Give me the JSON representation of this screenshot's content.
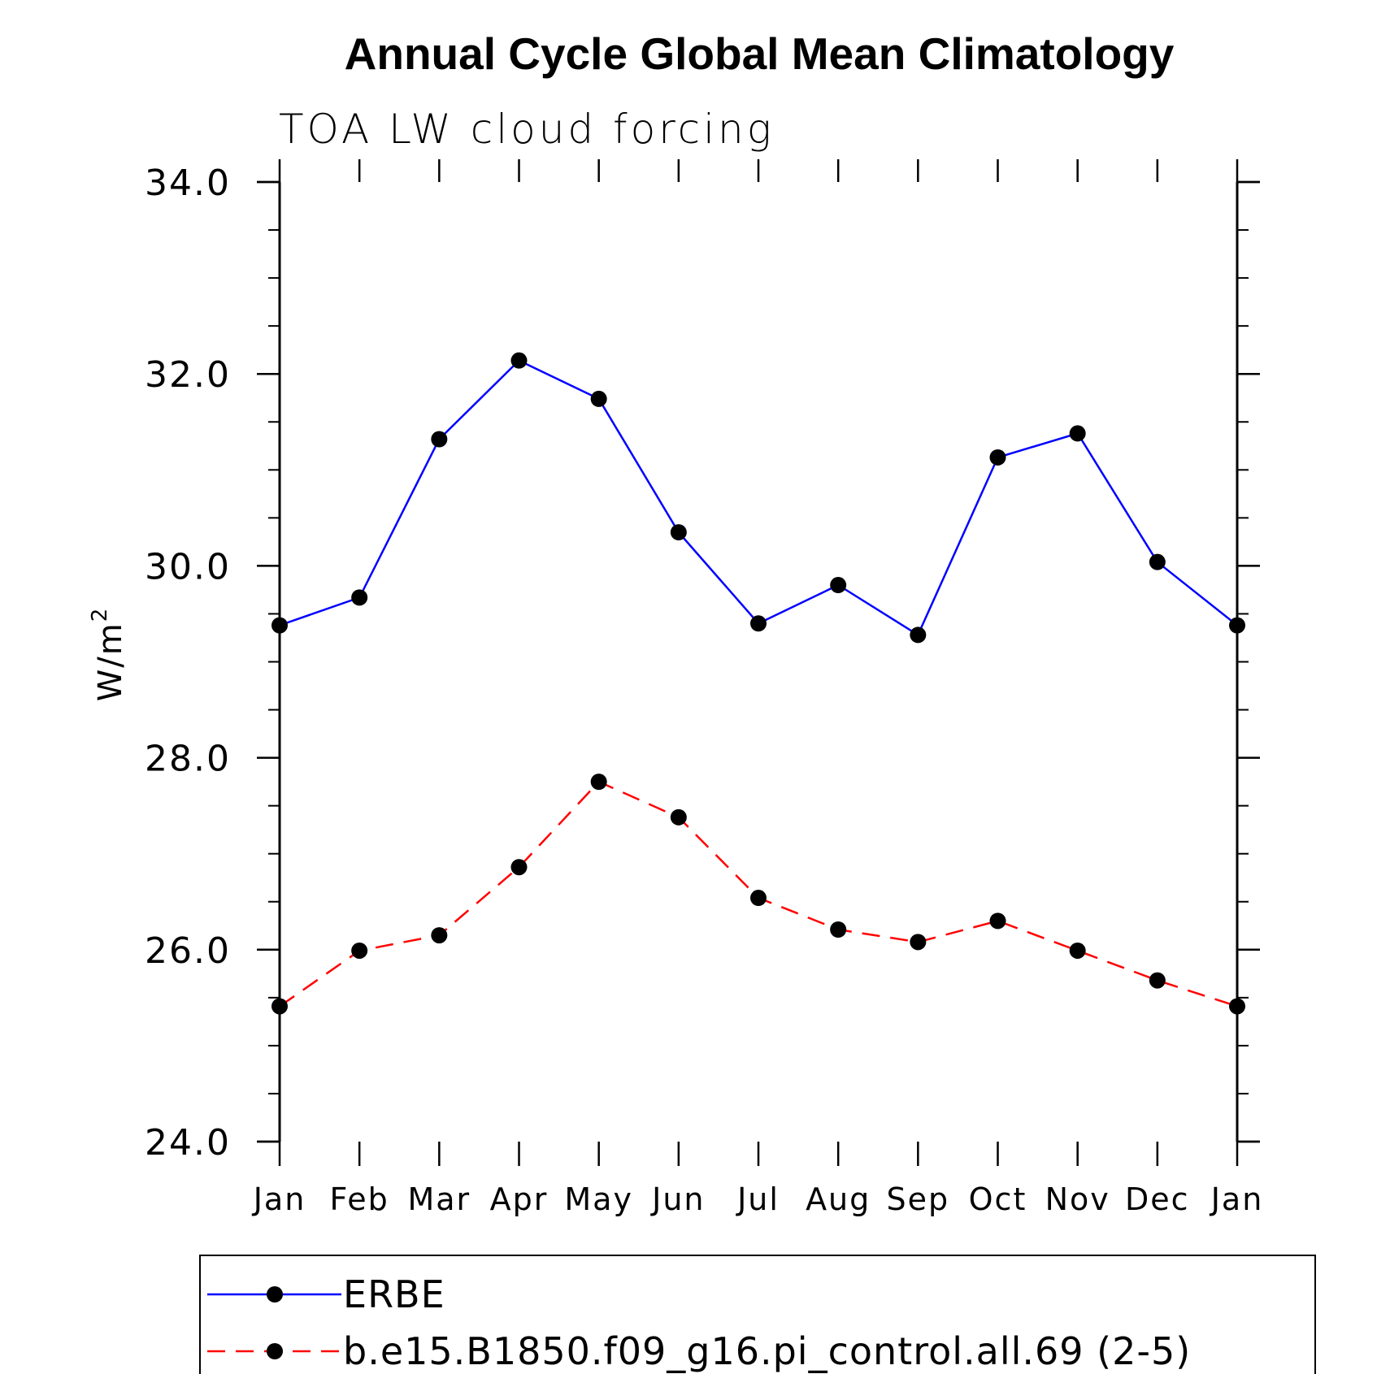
{
  "chart_data": {
    "type": "line",
    "title": "Annual Cycle Global Mean Climatology",
    "subtitle": "TOA LW cloud forcing",
    "ylabel": "W/m",
    "ylabel_superscript": "2",
    "xlabel": "",
    "ylim": [
      24.0,
      34.0
    ],
    "yticks": [
      "24.0",
      "26.0",
      "28.0",
      "30.0",
      "32.0",
      "34.0"
    ],
    "categories": [
      "Jan",
      "Feb",
      "Mar",
      "Apr",
      "May",
      "Jun",
      "Jul",
      "Aug",
      "Sep",
      "Oct",
      "Nov",
      "Dec",
      "Jan"
    ],
    "grid": false,
    "legend_position": "bottom",
    "series": [
      {
        "name": "ERBE",
        "color": "#0000ff",
        "dash": "solid",
        "values": [
          29.38,
          29.67,
          31.32,
          32.14,
          31.74,
          30.35,
          29.4,
          29.8,
          29.28,
          31.13,
          31.38,
          30.04,
          29.38
        ]
      },
      {
        "name": "b.e15.B1850.f09_g16.pi_control.all.69 (2-5)",
        "color": "#ff0000",
        "dash": "dashed",
        "values": [
          25.41,
          25.99,
          26.15,
          26.86,
          27.75,
          27.38,
          26.54,
          26.21,
          26.08,
          26.3,
          25.99,
          25.68,
          25.41
        ]
      }
    ]
  }
}
